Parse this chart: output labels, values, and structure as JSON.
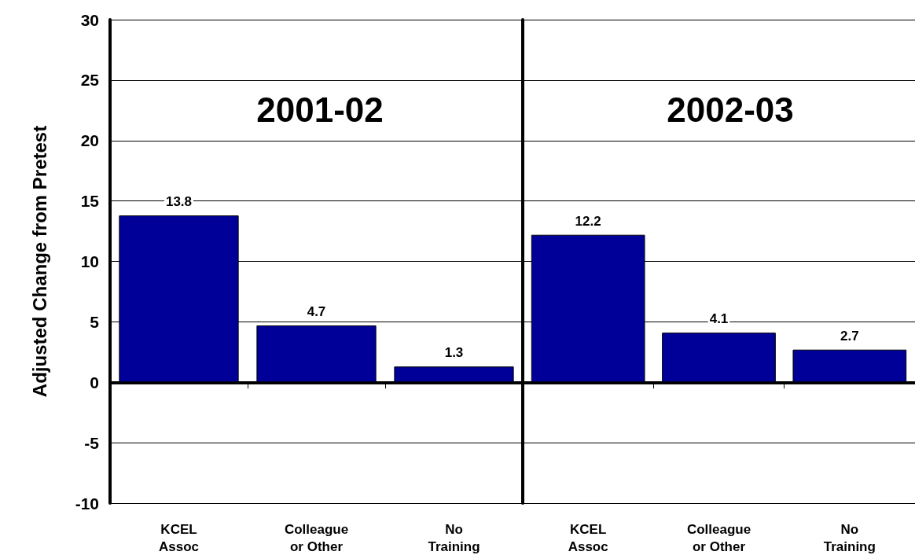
{
  "chart_data": [
    {
      "type": "bar",
      "title": "2001-02",
      "ylabel": "Adjusted Change from Pretest",
      "categories": [
        "KCEL\nAssoc",
        "Colleague\nor Other",
        "No\nTraining"
      ],
      "values": [
        13.8,
        4.7,
        1.3
      ],
      "color": "#000099",
      "ylim": [
        -10,
        30
      ],
      "yticks": [
        -10,
        -5,
        0,
        5,
        10,
        15,
        20,
        25,
        30
      ],
      "grid": "y",
      "data_labels": true
    },
    {
      "type": "bar",
      "title": "2002-03",
      "categories": [
        "KCEL\nAssoc",
        "Colleague\nor Other",
        "No\nTraining"
      ],
      "values": [
        12.2,
        4.1,
        2.7
      ],
      "color": "#000099",
      "ylim": [
        -10,
        30
      ],
      "yticks": [
        -10,
        -5,
        0,
        5,
        10,
        15,
        20,
        25,
        30
      ],
      "grid": "y",
      "data_labels": true,
      "tick_labels": "x"
    }
  ]
}
